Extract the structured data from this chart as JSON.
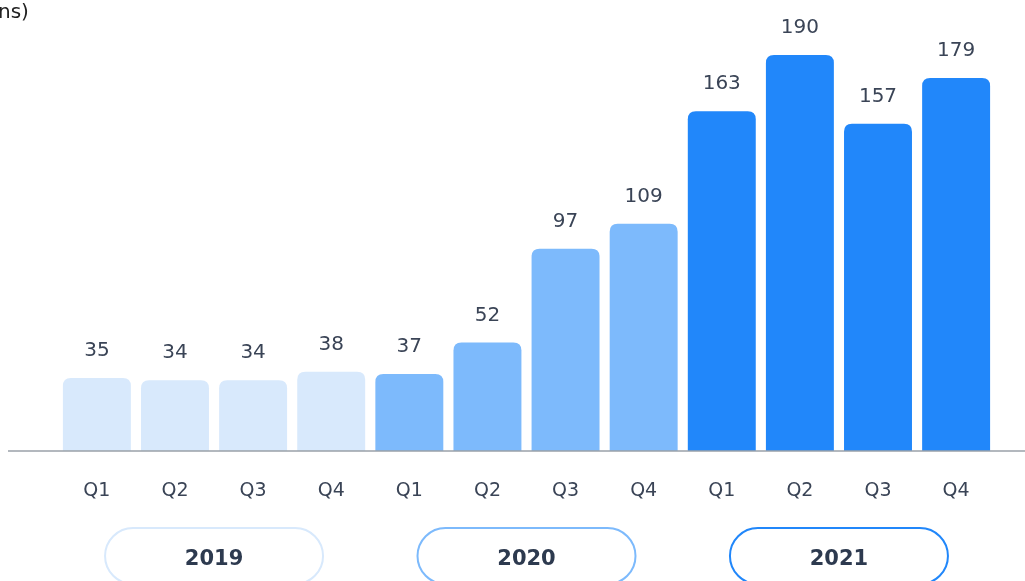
{
  "chart_data": {
    "type": "bar",
    "title": "ns)",
    "categories": [
      "Q1",
      "Q2",
      "Q3",
      "Q4",
      "Q1",
      "Q2",
      "Q3",
      "Q4",
      "Q1",
      "Q2",
      "Q3",
      "Q4"
    ],
    "values": [
      35,
      34,
      34,
      38,
      37,
      52,
      97,
      109,
      163,
      190,
      157,
      179
    ],
    "colors": [
      "#d8e9fc",
      "#d8e9fc",
      "#d8e9fc",
      "#d8e9fc",
      "#7dbafc",
      "#7dbafc",
      "#7dbafc",
      "#7dbafc",
      "#2187fa",
      "#2187fa",
      "#2187fa",
      "#2187fa"
    ],
    "data_labels": true,
    "annotations": [
      "2019",
      "2020",
      "2021"
    ]
  }
}
